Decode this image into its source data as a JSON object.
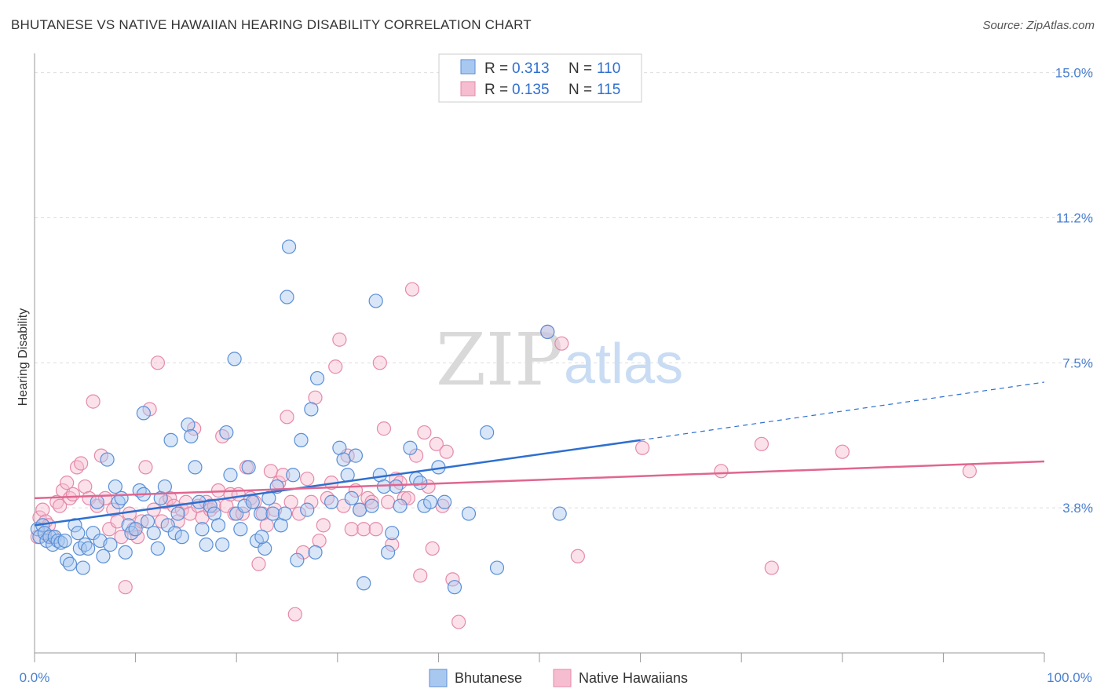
{
  "title": "BHUTANESE VS NATIVE HAWAIIAN HEARING DISABILITY CORRELATION CHART",
  "source": "Source: ZipAtlas.com",
  "watermark": {
    "zip": "ZIP",
    "atlas": "atlas"
  },
  "colors": {
    "blue_fill": "#a9c8f0",
    "blue_stroke": "#5a8fd6",
    "blue_line": "#2e6fcf",
    "pink_fill": "#f6bcd0",
    "pink_stroke": "#e58aa9",
    "pink_line": "#e06690",
    "axis_label": "#4a7fd0",
    "grid": "#dddddd"
  },
  "legend": {
    "rows": [
      {
        "r_label": "R = ",
        "r_value": "0.313",
        "n_label": "N = ",
        "n_value": "110"
      },
      {
        "r_label": "R = ",
        "r_value": "0.135",
        "n_label": "N = ",
        "n_value": "115"
      }
    ],
    "bottom": [
      "Bhutanese",
      "Native Hawaiians"
    ]
  },
  "chart_data": {
    "type": "scatter",
    "title": "BHUTANESE VS NATIVE HAWAIIAN HEARING DISABILITY CORRELATION CHART",
    "xlabel": "",
    "ylabel": "Hearing Disability",
    "x_tick_labels": [
      "0.0%",
      "100.0%"
    ],
    "y_tick_labels": [
      "15.0%",
      "11.2%",
      "7.5%",
      "3.8%"
    ],
    "y_ticks": [
      15.0,
      11.25,
      7.5,
      3.75
    ],
    "xlim": [
      0,
      100
    ],
    "ylim": [
      0,
      15.5
    ],
    "grid": "horizontal dashed",
    "legend_position": "top-center",
    "series": [
      {
        "name": "Bhutanese",
        "r": 0.313,
        "n": 110,
        "trend": {
          "x0": 0,
          "y0": 3.3,
          "x1": 60,
          "y1": 5.5,
          "dashed_to_x": 100,
          "dashed_to_y": 7.0
        },
        "points": [
          [
            0.3,
            3.2
          ],
          [
            0.5,
            3.0
          ],
          [
            0.8,
            3.3
          ],
          [
            1.0,
            3.1
          ],
          [
            1.2,
            2.9
          ],
          [
            1.5,
            3.0
          ],
          [
            1.8,
            2.8
          ],
          [
            2.0,
            3.0
          ],
          [
            2.3,
            2.9
          ],
          [
            2.6,
            2.85
          ],
          [
            3.0,
            2.9
          ],
          [
            3.2,
            2.4
          ],
          [
            3.5,
            2.3
          ],
          [
            4.0,
            3.3
          ],
          [
            4.3,
            3.1
          ],
          [
            4.5,
            2.7
          ],
          [
            4.8,
            2.2
          ],
          [
            5.0,
            2.8
          ],
          [
            5.3,
            2.7
          ],
          [
            5.8,
            3.1
          ],
          [
            6.2,
            3.9
          ],
          [
            6.5,
            2.9
          ],
          [
            6.8,
            2.5
          ],
          [
            7.2,
            5.0
          ],
          [
            7.5,
            2.8
          ],
          [
            8.0,
            4.3
          ],
          [
            8.3,
            3.9
          ],
          [
            8.6,
            4.0
          ],
          [
            9.0,
            2.6
          ],
          [
            9.3,
            3.3
          ],
          [
            9.6,
            3.1
          ],
          [
            10.0,
            3.2
          ],
          [
            10.4,
            4.2
          ],
          [
            10.8,
            6.2
          ],
          [
            10.8,
            4.1
          ],
          [
            11.2,
            3.4
          ],
          [
            11.8,
            3.1
          ],
          [
            12.2,
            2.7
          ],
          [
            12.5,
            4.0
          ],
          [
            12.9,
            4.3
          ],
          [
            13.2,
            3.3
          ],
          [
            13.5,
            5.5
          ],
          [
            13.9,
            3.1
          ],
          [
            14.2,
            3.6
          ],
          [
            14.6,
            3.0
          ],
          [
            15.2,
            5.9
          ],
          [
            15.5,
            5.6
          ],
          [
            15.9,
            4.8
          ],
          [
            16.3,
            3.9
          ],
          [
            16.6,
            3.2
          ],
          [
            17.0,
            2.8
          ],
          [
            17.4,
            3.8
          ],
          [
            17.8,
            3.6
          ],
          [
            18.2,
            3.3
          ],
          [
            18.6,
            2.8
          ],
          [
            19.0,
            5.7
          ],
          [
            19.4,
            4.6
          ],
          [
            19.8,
            7.6
          ],
          [
            20.0,
            3.6
          ],
          [
            20.4,
            3.2
          ],
          [
            20.8,
            3.8
          ],
          [
            21.2,
            4.8
          ],
          [
            21.6,
            3.9
          ],
          [
            22.0,
            2.9
          ],
          [
            22.4,
            3.6
          ],
          [
            22.8,
            2.7
          ],
          [
            23.2,
            4.0
          ],
          [
            23.6,
            3.6
          ],
          [
            24.0,
            4.3
          ],
          [
            24.4,
            3.3
          ],
          [
            24.8,
            3.6
          ],
          [
            25.0,
            9.2
          ],
          [
            25.2,
            10.5
          ],
          [
            25.6,
            4.6
          ],
          [
            26.0,
            2.4
          ],
          [
            26.4,
            5.5
          ],
          [
            27.0,
            3.7
          ],
          [
            27.4,
            6.3
          ],
          [
            27.8,
            2.6
          ],
          [
            28.0,
            7.1
          ],
          [
            29.4,
            3.9
          ],
          [
            30.2,
            5.3
          ],
          [
            30.6,
            5.0
          ],
          [
            31.0,
            4.6
          ],
          [
            31.4,
            4.0
          ],
          [
            31.8,
            5.1
          ],
          [
            32.2,
            3.7
          ],
          [
            32.6,
            1.8
          ],
          [
            33.4,
            3.8
          ],
          [
            33.8,
            9.1
          ],
          [
            34.2,
            4.6
          ],
          [
            34.6,
            4.3
          ],
          [
            35.0,
            2.6
          ],
          [
            35.4,
            3.1
          ],
          [
            35.8,
            4.3
          ],
          [
            36.2,
            3.8
          ],
          [
            37.2,
            5.3
          ],
          [
            37.8,
            4.5
          ],
          [
            38.2,
            4.4
          ],
          [
            38.6,
            3.8
          ],
          [
            39.2,
            3.9
          ],
          [
            40.0,
            4.8
          ],
          [
            40.6,
            3.9
          ],
          [
            41.6,
            1.7
          ],
          [
            43.0,
            3.6
          ],
          [
            44.8,
            5.7
          ],
          [
            45.8,
            2.2
          ],
          [
            50.8,
            8.3
          ],
          [
            52.0,
            3.6
          ],
          [
            22.5,
            3.0
          ]
        ]
      },
      {
        "name": "Native Hawaiians",
        "r": 0.135,
        "n": 115,
        "trend": {
          "x0": 0,
          "y0": 4.0,
          "x1": 100,
          "y1": 4.95
        },
        "points": [
          [
            0.3,
            3.0
          ],
          [
            0.5,
            3.5
          ],
          [
            0.8,
            3.7
          ],
          [
            1.1,
            3.4
          ],
          [
            1.4,
            3.3
          ],
          [
            1.8,
            3.0
          ],
          [
            2.2,
            3.9
          ],
          [
            2.5,
            3.8
          ],
          [
            2.8,
            4.2
          ],
          [
            3.2,
            4.4
          ],
          [
            3.5,
            4.0
          ],
          [
            3.8,
            4.1
          ],
          [
            4.2,
            4.8
          ],
          [
            4.6,
            4.9
          ],
          [
            5.0,
            4.3
          ],
          [
            5.4,
            4.0
          ],
          [
            5.8,
            6.5
          ],
          [
            6.2,
            3.8
          ],
          [
            6.6,
            5.1
          ],
          [
            7.0,
            4.0
          ],
          [
            7.4,
            3.2
          ],
          [
            7.8,
            3.7
          ],
          [
            8.2,
            3.4
          ],
          [
            8.6,
            3.0
          ],
          [
            9.0,
            1.7
          ],
          [
            9.4,
            3.6
          ],
          [
            9.8,
            3.2
          ],
          [
            10.2,
            3.0
          ],
          [
            10.6,
            3.4
          ],
          [
            11.0,
            4.8
          ],
          [
            11.4,
            6.3
          ],
          [
            11.8,
            3.7
          ],
          [
            12.2,
            7.5
          ],
          [
            12.6,
            3.4
          ],
          [
            13.0,
            3.9
          ],
          [
            13.4,
            4.0
          ],
          [
            13.8,
            3.8
          ],
          [
            14.2,
            3.4
          ],
          [
            14.6,
            3.7
          ],
          [
            15.0,
            3.9
          ],
          [
            15.4,
            3.6
          ],
          [
            15.8,
            5.8
          ],
          [
            16.2,
            3.8
          ],
          [
            16.6,
            3.5
          ],
          [
            17.0,
            3.9
          ],
          [
            17.4,
            3.7
          ],
          [
            17.8,
            3.8
          ],
          [
            18.2,
            4.2
          ],
          [
            18.6,
            5.6
          ],
          [
            19.0,
            3.8
          ],
          [
            19.4,
            4.1
          ],
          [
            19.8,
            3.6
          ],
          [
            20.2,
            4.1
          ],
          [
            20.6,
            3.6
          ],
          [
            21.0,
            4.8
          ],
          [
            21.4,
            4.0
          ],
          [
            21.8,
            3.9
          ],
          [
            22.2,
            2.3
          ],
          [
            22.6,
            3.6
          ],
          [
            23.0,
            3.3
          ],
          [
            23.4,
            4.7
          ],
          [
            23.8,
            3.7
          ],
          [
            24.2,
            4.4
          ],
          [
            24.6,
            4.6
          ],
          [
            25.0,
            6.1
          ],
          [
            25.4,
            3.9
          ],
          [
            25.8,
            1.0
          ],
          [
            26.2,
            3.6
          ],
          [
            26.6,
            2.6
          ],
          [
            27.0,
            4.5
          ],
          [
            27.4,
            3.9
          ],
          [
            27.8,
            6.6
          ],
          [
            28.2,
            2.9
          ],
          [
            28.6,
            3.3
          ],
          [
            29.0,
            4.0
          ],
          [
            29.4,
            4.4
          ],
          [
            29.8,
            7.4
          ],
          [
            30.2,
            8.1
          ],
          [
            30.6,
            3.8
          ],
          [
            31.0,
            5.1
          ],
          [
            31.4,
            3.2
          ],
          [
            31.8,
            4.2
          ],
          [
            32.2,
            3.7
          ],
          [
            32.6,
            3.2
          ],
          [
            33.0,
            4.0
          ],
          [
            33.4,
            3.9
          ],
          [
            33.8,
            3.2
          ],
          [
            34.2,
            7.5
          ],
          [
            34.6,
            5.8
          ],
          [
            35.0,
            3.9
          ],
          [
            35.4,
            2.8
          ],
          [
            35.8,
            4.5
          ],
          [
            36.2,
            4.4
          ],
          [
            36.6,
            4.0
          ],
          [
            37.0,
            4.0
          ],
          [
            37.4,
            9.4
          ],
          [
            37.8,
            5.1
          ],
          [
            38.2,
            2.0
          ],
          [
            38.6,
            5.7
          ],
          [
            39.0,
            4.3
          ],
          [
            39.4,
            2.7
          ],
          [
            39.8,
            5.4
          ],
          [
            40.4,
            3.8
          ],
          [
            40.8,
            5.2
          ],
          [
            41.4,
            1.9
          ],
          [
            42.0,
            0.8
          ],
          [
            50.8,
            8.3
          ],
          [
            52.2,
            8.0
          ],
          [
            53.8,
            2.5
          ],
          [
            60.2,
            5.3
          ],
          [
            68.0,
            4.7
          ],
          [
            72.0,
            5.4
          ],
          [
            73.0,
            2.2
          ],
          [
            80.0,
            5.2
          ],
          [
            92.6,
            4.7
          ]
        ]
      }
    ]
  }
}
